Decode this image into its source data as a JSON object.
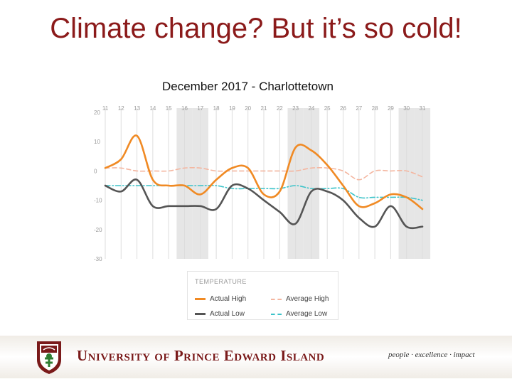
{
  "slide": {
    "title": "Climate change? But it’s so cold!",
    "subtitle": "December 2017 - Charlottetown"
  },
  "chart_data": {
    "type": "line",
    "title": "",
    "xlabel": "",
    "ylabel": "",
    "categories": [
      "11",
      "12",
      "13",
      "14",
      "15",
      "16",
      "17",
      "18",
      "19",
      "20",
      "21",
      "22",
      "23",
      "24",
      "25",
      "26",
      "27",
      "28",
      "29",
      "30",
      "31"
    ],
    "ylim": [
      -30,
      20
    ],
    "yticks": [
      20,
      10,
      0,
      -10,
      -20,
      -30
    ],
    "shaded_days": [
      "16",
      "17",
      "23",
      "24",
      "30",
      "31"
    ],
    "series": [
      {
        "name": "Actual High",
        "color": "#f08a24",
        "style": "solid",
        "values": [
          1,
          4,
          12,
          -3,
          -5,
          -5,
          -8,
          -3,
          1,
          1,
          -8,
          -7,
          8,
          7,
          2,
          -5,
          -12,
          -11,
          -8,
          -9,
          -13
        ]
      },
      {
        "name": "Actual Low",
        "color": "#555555",
        "style": "solid",
        "values": [
          -5,
          -7,
          -3,
          -12,
          -12,
          -12,
          -12,
          -13,
          -5,
          -6,
          -10,
          -14,
          -18,
          -7,
          -7,
          -10,
          -16,
          -19,
          -12,
          -19,
          -19
        ]
      },
      {
        "name": "Average High",
        "color": "#f4b6a0",
        "style": "dash",
        "values": [
          1,
          1,
          0,
          0,
          0,
          1,
          1,
          0,
          0,
          0,
          0,
          0,
          0,
          1,
          1,
          0,
          -3,
          0,
          0,
          0,
          -2
        ]
      },
      {
        "name": "Average Low",
        "color": "#3cc3c9",
        "style": "dashdot",
        "values": [
          -5,
          -5,
          -5,
          -5,
          -5,
          -5,
          -5,
          -5,
          -6,
          -6,
          -6,
          -6,
          -5,
          -6,
          -6,
          -6,
          -9,
          -9,
          -9,
          -9,
          -10
        ]
      }
    ],
    "legend": {
      "title": "TEMPERATURE",
      "position": "bottom",
      "items": [
        {
          "label": "Actual High",
          "series": "Actual High"
        },
        {
          "label": "Average High",
          "series": "Average High"
        },
        {
          "label": "Actual Low",
          "series": "Actual Low"
        },
        {
          "label": "Average Low",
          "series": "Average Low"
        }
      ]
    }
  },
  "footer": {
    "university": "University of Prince Edward Island",
    "motto": "people · excellence · impact"
  },
  "icons": {
    "crest": "university-crest-icon"
  },
  "colors": {
    "title": "#8b1a1a",
    "brand": "#7a1a1a",
    "shade": "#e6e6e6",
    "grid": "#dddddd"
  }
}
